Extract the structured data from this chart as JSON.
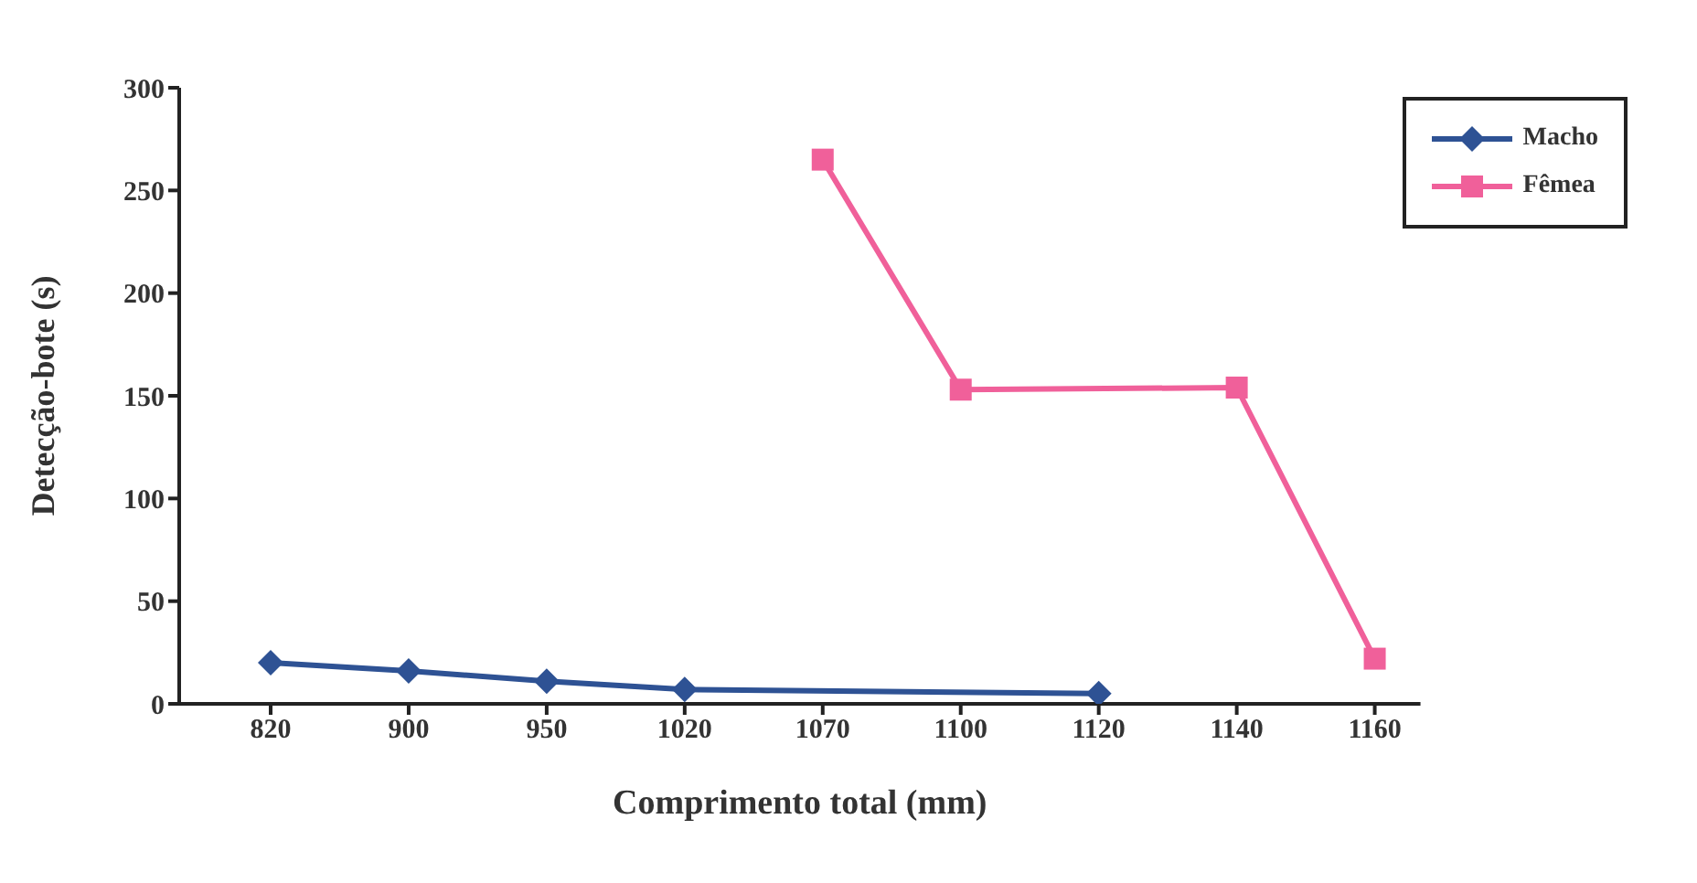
{
  "chart_data": {
    "type": "line",
    "xlabel": "Comprimento total (mm)",
    "ylabel": "Detecção-bote (s)",
    "categories": [
      "820",
      "900",
      "950",
      "1020",
      "1070",
      "1100",
      "1120",
      "1140",
      "1160"
    ],
    "series": [
      {
        "name": "Macho",
        "color": "#2e5294",
        "marker": "diamond",
        "values": [
          20,
          16,
          11,
          7,
          null,
          null,
          5,
          null,
          null
        ]
      },
      {
        "name": "Fêmea",
        "color": "#f0609a",
        "marker": "square",
        "values": [
          null,
          null,
          null,
          null,
          265,
          153,
          null,
          154,
          22
        ]
      }
    ],
    "ylim": [
      0,
      300
    ],
    "yticks": [
      0,
      50,
      100,
      150,
      200,
      250,
      300
    ],
    "legend": "top right"
  }
}
